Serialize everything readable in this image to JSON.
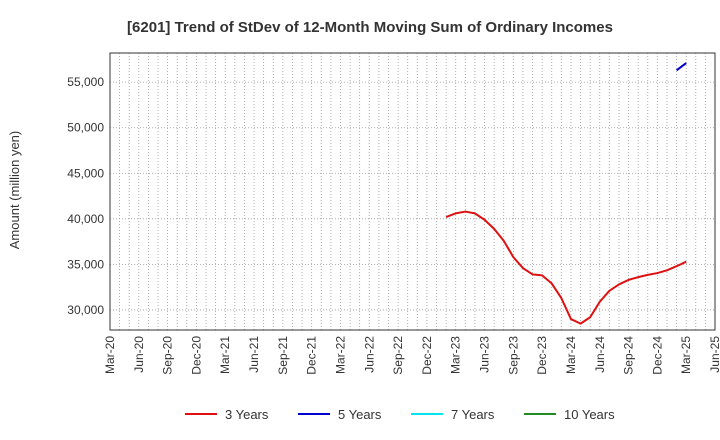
{
  "chart_data": {
    "type": "line",
    "title": "[6201]  Trend of StDev of 12-Month Moving Sum of Ordinary Incomes",
    "xlabel": "",
    "ylabel": "Amount (million yen)",
    "ylim": [
      27800,
      58200
    ],
    "yticks": [
      30000,
      35000,
      40000,
      45000,
      50000,
      55000
    ],
    "ytick_labels": [
      "30,000",
      "35,000",
      "40,000",
      "45,000",
      "50,000",
      "55,000"
    ],
    "xlim": [
      "2020-03",
      "2025-06"
    ],
    "x_tick_labels": [
      "Mar-20",
      "Jun-20",
      "Sep-20",
      "Dec-20",
      "Mar-21",
      "Jun-21",
      "Sep-21",
      "Dec-21",
      "Mar-22",
      "Jun-22",
      "Sep-22",
      "Dec-22",
      "Mar-23",
      "Jun-23",
      "Sep-23",
      "Dec-23",
      "Mar-24",
      "Jun-24",
      "Sep-24",
      "Dec-24",
      "Mar-25",
      "Jun-25"
    ],
    "grid": true,
    "legend_position": "bottom",
    "series": [
      {
        "name": "3 Years",
        "color": "#dd1111",
        "x": [
          "2023-02",
          "2023-03",
          "2023-04",
          "2023-05",
          "2023-06",
          "2023-07",
          "2023-08",
          "2023-09",
          "2023-10",
          "2023-11",
          "2023-12",
          "2024-01",
          "2024-02",
          "2024-03",
          "2024-04",
          "2024-05",
          "2024-06",
          "2024-07",
          "2024-08",
          "2024-09",
          "2024-10",
          "2024-11",
          "2024-12",
          "2025-01",
          "2025-02",
          "2025-03"
        ],
        "values": [
          40200,
          40600,
          40800,
          40600,
          39900,
          38900,
          37600,
          35800,
          34600,
          33900,
          33800,
          32900,
          31300,
          29000,
          28500,
          29200,
          30900,
          32100,
          32800,
          33300,
          33600,
          33850,
          34050,
          34350,
          34800,
          35300
        ]
      },
      {
        "name": "5 Years",
        "color": "#0000cc",
        "x": [
          "2025-02",
          "2025-03"
        ],
        "values": [
          56300,
          57100
        ]
      },
      {
        "name": "7 Years",
        "color": "#00e5ee",
        "x": [],
        "values": []
      },
      {
        "name": "10 Years",
        "color": "#228b22",
        "x": [],
        "values": []
      }
    ]
  }
}
